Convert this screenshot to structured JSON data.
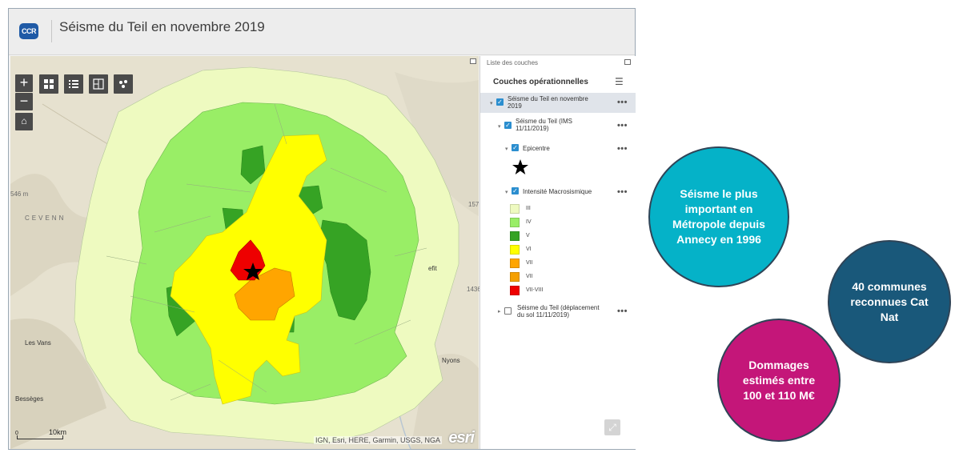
{
  "header": {
    "logo_text": "CCR",
    "title": "Séisme du Teil en novembre 2019"
  },
  "map": {
    "attribution": "IGN, Esri, HERE, Garmin, USGS, NGA",
    "esri_logo": "esri",
    "scale_label": "10km",
    "scale_zero": "0",
    "labels": [
      {
        "name": "cevenn",
        "text": "CEVENN"
      },
      {
        "name": "les-vans",
        "text": "Les Vans"
      },
      {
        "name": "besseges",
        "text": "Bessèges"
      },
      {
        "name": "nyons",
        "text": "Nyons"
      },
      {
        "name": "alt-546",
        "text": "546 m"
      },
      {
        "name": "alt-1436",
        "text": "1436"
      },
      {
        "name": "alt-1157",
        "text": "157"
      },
      {
        "name": "tag-fit",
        "text": "efit"
      }
    ],
    "epicenter_icon": "star-icon",
    "intensity_colors": {
      "III": "#eefac0",
      "IV": "#99ee66",
      "V": "#36a324",
      "VI": "#ffff00",
      "VII": "#ffa500",
      "VII-VIII": "#ee0000"
    }
  },
  "panel": {
    "title_small": "Liste des couches",
    "heading": "Couches opérationnelles",
    "layers": [
      {
        "label": "Séisme du Teil en novembre 2019"
      },
      {
        "label": "Séisme du Teil (IMS 11/11/2019)"
      },
      {
        "label": "Epicentre"
      },
      {
        "label": "Intensité Macrosismique"
      },
      {
        "label": "Séisme du Teil (déplacement du sol 11/11/2019)"
      }
    ],
    "legend": [
      {
        "label": "III",
        "color": "#eefac0"
      },
      {
        "label": "IV",
        "color": "#99ee66"
      },
      {
        "label": "V",
        "color": "#36a324"
      },
      {
        "label": "VI",
        "color": "#ffff00"
      },
      {
        "label": "VII",
        "color": "#ffa500"
      },
      {
        "label": "VII",
        "color": "#f5a000"
      },
      {
        "label": "VII-VIII",
        "color": "#ee0000"
      }
    ],
    "more_icon": "more-icon"
  },
  "bubbles": [
    {
      "text": "Séisme le plus important en Métropole depuis Annecy en 1996",
      "color": "#05b2c8"
    },
    {
      "text": "40 communes reconnues Cat Nat",
      "color": "#19587a"
    },
    {
      "text": "Dommages estimés entre 100 et 110 M€",
      "color": "#c41679"
    }
  ]
}
